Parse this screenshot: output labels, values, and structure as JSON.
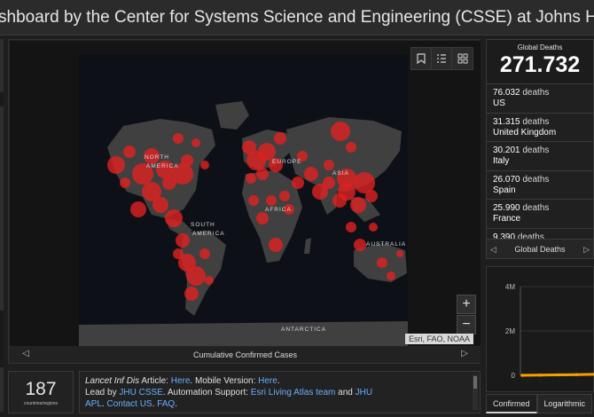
{
  "header": {
    "title": "shboard by the Center for Systems Science and Engineering (CSSE) at Johns Hopkins"
  },
  "map": {
    "labels": [
      {
        "name": "north-america-label",
        "text": "NORTH AMERICA"
      },
      {
        "name": "europe-label",
        "text": "EUROPE"
      },
      {
        "name": "asia-label",
        "text": "ASIA"
      },
      {
        "name": "africa-label",
        "text": "AFRICA"
      },
      {
        "name": "south-america-label",
        "text": "SOUTH AMERICA"
      },
      {
        "name": "australia-label",
        "text": "AUSTRALIA"
      },
      {
        "name": "antarctica-label",
        "text": "ANTARCTICA"
      }
    ],
    "attribution": "Esri, FAO, NOAA",
    "footer_label": "Cumulative Confirmed Cases",
    "zoom_in": "+",
    "zoom_out": "−",
    "tools": [
      "bookmark-icon",
      "list-icon",
      "grid-icon"
    ],
    "land_color": "#404040",
    "ocean_color": "#141414",
    "marker_color": "#e02020"
  },
  "deaths": {
    "label": "Global Deaths",
    "total": "271.732",
    "items": [
      {
        "count": "76.032",
        "unit": "deaths",
        "country": "US"
      },
      {
        "count": "31.315",
        "unit": "deaths",
        "country": "United Kingdom"
      },
      {
        "count": "30.201",
        "unit": "deaths",
        "country": "Italy"
      },
      {
        "count": "26.070",
        "unit": "deaths",
        "country": "Spain"
      },
      {
        "count": "25.990",
        "unit": "deaths",
        "country": "France"
      },
      {
        "count": "9.390",
        "unit": "deaths",
        "country": ""
      }
    ],
    "footer_label": "Global Deaths"
  },
  "chart": {
    "tabs": [
      "Confirmed",
      "Logarithmic"
    ],
    "active_tab": "Confirmed",
    "line_color": "#f5a000"
  },
  "chart_data": {
    "type": "line",
    "title": "",
    "xlabel": "",
    "ylabel": "",
    "ylim": [
      0,
      4000000
    ],
    "yticks": [
      "0",
      "2M",
      "4M"
    ],
    "series": [
      {
        "values": [
          0,
          10000,
          20000,
          30000,
          45000
        ]
      }
    ]
  },
  "countries_regions": {
    "count": "187",
    "label": "countries/regions"
  },
  "info": {
    "line1_prefix": "Lancet Inf Dis",
    "line1_mid": " Article: ",
    "line1_link": "Here",
    "line1_mid2": ". Mobile Version: ",
    "line1_link2": "Here",
    "line1_end": ".",
    "line2_prefix": "Lead by ",
    "line2_link1": "JHU CSSE",
    "line2_mid": ". Automation Support: ",
    "line2_link2": "Esri Living Atlas team",
    "line2_and": " and ",
    "line2_link3": "JHU",
    "line3_link1": "APL",
    "line3_sep": ". ",
    "line3_link2": "Contact US",
    "line3_sep2": ". ",
    "line3_link3": "FAQ",
    "line3_end": "."
  }
}
